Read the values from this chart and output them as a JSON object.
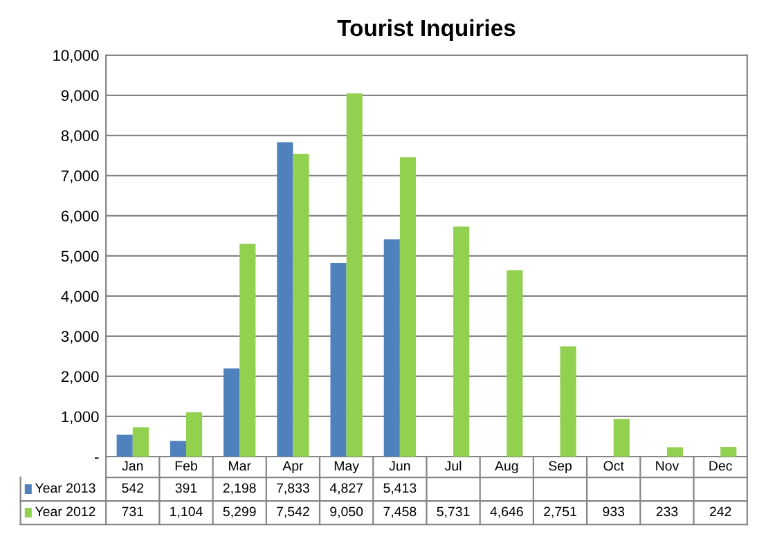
{
  "chart_data": {
    "type": "bar",
    "title": "Tourist Inquiries",
    "categories": [
      "Jan",
      "Feb",
      "Mar",
      "Apr",
      "May",
      "Jun",
      "Jul",
      "Aug",
      "Sep",
      "Oct",
      "Nov",
      "Dec"
    ],
    "series": [
      {
        "name": "Year 2013",
        "color": "#4f81bd",
        "values": [
          542,
          391,
          2198,
          7833,
          4827,
          5413,
          null,
          null,
          null,
          null,
          null,
          null
        ],
        "value_labels": [
          "542",
          "391",
          "2,198",
          "7,833",
          "4,827",
          "5,413",
          null,
          null,
          null,
          null,
          null,
          null
        ]
      },
      {
        "name": "Year 2012",
        "color": "#92d050",
        "values": [
          731,
          1104,
          5299,
          7542,
          9050,
          7458,
          5731,
          4646,
          2751,
          933,
          233,
          242
        ],
        "value_labels": [
          "731",
          "1,104",
          "5,299",
          "7,542",
          "9,050",
          "7,458",
          "5,731",
          "4,646",
          "2,751",
          "933",
          "233",
          "242"
        ]
      }
    ],
    "ylim": [
      0,
      10000
    ],
    "yticks": [
      {
        "value": 0,
        "label": "-"
      },
      {
        "value": 1000,
        "label": "1,000"
      },
      {
        "value": 2000,
        "label": "2,000"
      },
      {
        "value": 3000,
        "label": "3,000"
      },
      {
        "value": 4000,
        "label": "4,000"
      },
      {
        "value": 5000,
        "label": "5,000"
      },
      {
        "value": 6000,
        "label": "6,000"
      },
      {
        "value": 7000,
        "label": "7,000"
      },
      {
        "value": 8000,
        "label": "8,000"
      },
      {
        "value": 9000,
        "label": "9,000"
      },
      {
        "value": 10000,
        "label": "10,000"
      }
    ],
    "grid": "y",
    "legend": "bottom"
  }
}
